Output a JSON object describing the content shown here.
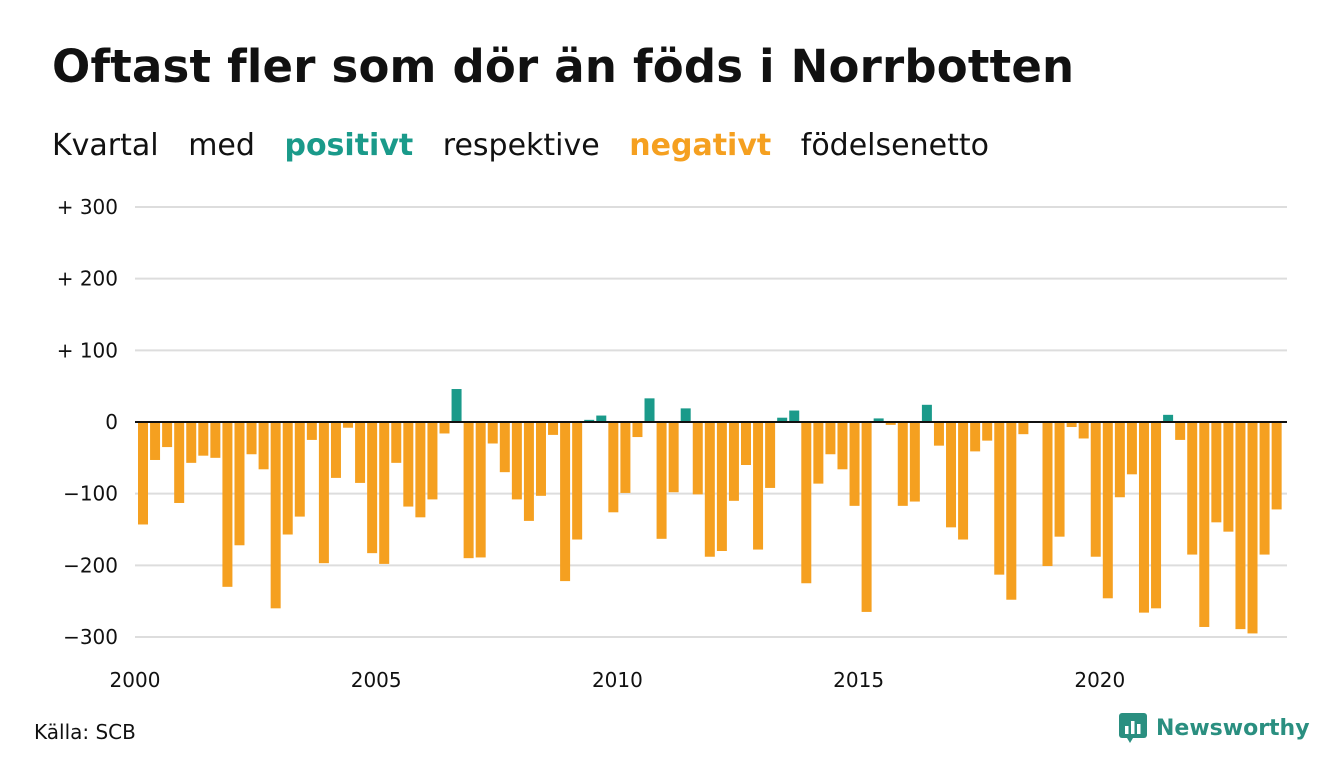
{
  "title": "Oftast fler som dör än föds i Norrbotten",
  "subtitle": {
    "part1": "Kvartal",
    "part2": "med",
    "positive": "positivt",
    "part3": "respektive",
    "negative": "negativt",
    "part4": "födelsenetto"
  },
  "source": "Källa: SCB",
  "brand": "Newsworthy",
  "colors": {
    "positive": "#1a9a8a",
    "negative": "#f5a020",
    "grid": "#dddddd",
    "axis": "#111111",
    "brand": "#2a8f80"
  },
  "chart_data": {
    "type": "bar",
    "ylim": [
      -300,
      300
    ],
    "y_ticks": [
      300,
      200,
      100,
      0,
      -100,
      -200,
      -300
    ],
    "y_tick_labels": [
      "+ 300",
      "+ 200",
      "+ 100",
      "0",
      "−100",
      "−200",
      "−300"
    ],
    "x_tick_labels": [
      "2000",
      "2005",
      "2010",
      "2015",
      "2020"
    ],
    "x_tick_years": [
      2000,
      2005,
      2010,
      2015,
      2020
    ],
    "start_year": 2000,
    "grid": true,
    "values": [
      -143,
      -53,
      -35,
      -113,
      -57,
      -47,
      -50,
      -230,
      -172,
      -45,
      -66,
      -260,
      -157,
      -132,
      -25,
      -197,
      -78,
      -8,
      -85,
      -183,
      -198,
      -57,
      -118,
      -133,
      -108,
      -16,
      46,
      -190,
      -189,
      -30,
      -70,
      -108,
      -138,
      -103,
      -18,
      -222,
      -164,
      3,
      9,
      -126,
      -99,
      -21,
      33,
      -163,
      -98,
      19,
      -101,
      -188,
      -180,
      -110,
      -60,
      -178,
      -92,
      6,
      16,
      -225,
      -86,
      -45,
      -66,
      -117,
      -265,
      5,
      -4,
      -117,
      -111,
      24,
      -33,
      -147,
      -164,
      -41,
      -26,
      -213,
      -248,
      -17,
      0,
      -201,
      -160,
      -7,
      -23,
      -188,
      -246,
      -105,
      -73,
      -266,
      -260,
      10,
      -25,
      -185,
      -286,
      -140,
      -153,
      -289,
      -295,
      -185,
      -122
    ]
  }
}
